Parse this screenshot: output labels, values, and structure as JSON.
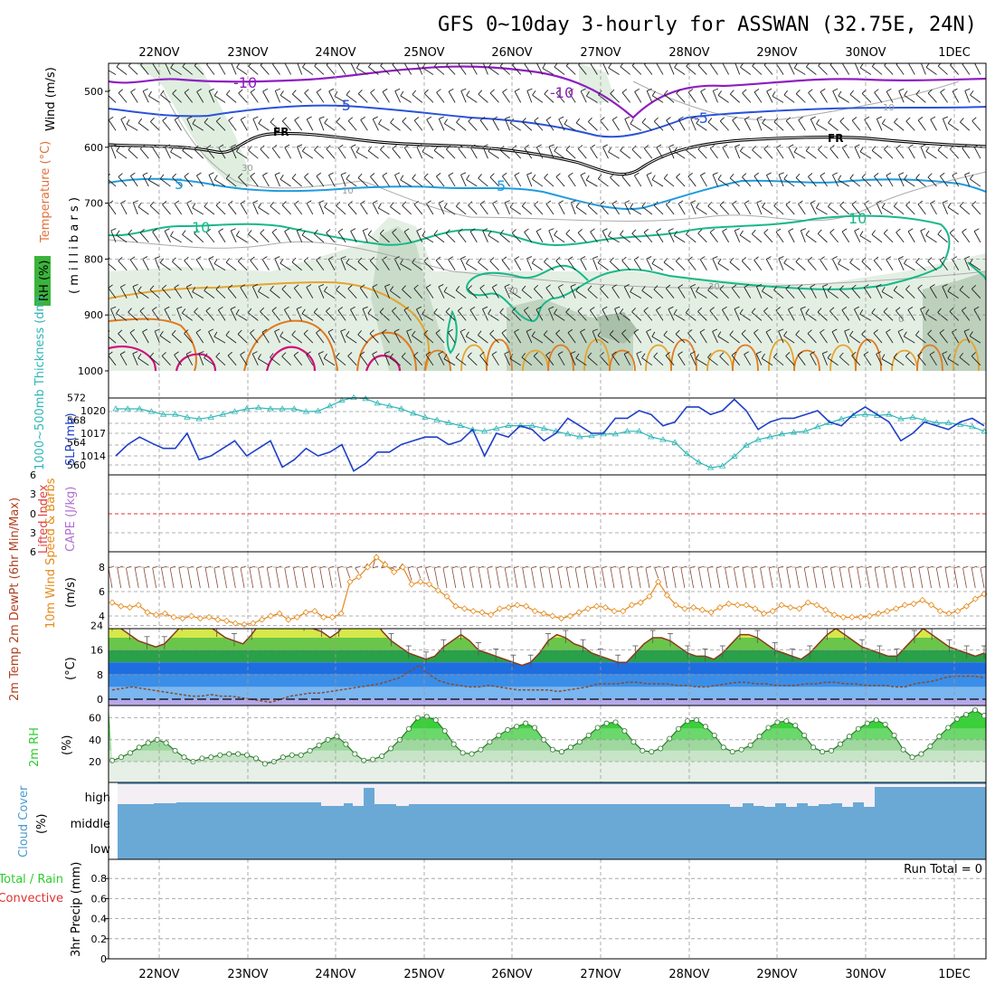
{
  "title": "GFS 0~10day 3-hourly for ASSWAN (32.75E, 24N)",
  "dates": [
    "22NOV",
    "23NOV",
    "24NOV",
    "25NOV",
    "26NOV",
    "27NOV",
    "28NOV",
    "29NOV",
    "30NOV",
    "1DEC"
  ],
  "colors": {
    "temp_purple": "#8e1ec0",
    "temp_blue": "#2a52d8",
    "temp_light_blue": "#1e9be0",
    "temp_green": "#17b889",
    "temp_orange": "#e5a42c",
    "temp_darkorange": "#e07a20",
    "temp_magenta": "#d0107a",
    "slp": "#1f3fc7",
    "thickness": "#2fb6b6",
    "wind10": "#e58a1c",
    "rh": "#2ecc2e",
    "cloud": "#6aa9d6",
    "zero_line": "#e03030"
  },
  "panels": {
    "upper_air": {
      "axis_title": "( m i l l i b a r s )",
      "label_wind": "Wind (m/s)",
      "label_temp": "Temperature (°C)",
      "label_rh": "RH (%)",
      "contour_labels": [
        "-10",
        "-10",
        "-5",
        "-5",
        "FR",
        "FR",
        "5",
        "5",
        "10",
        "10",
        "30",
        "30",
        "10",
        "10",
        "30",
        "0"
      ],
      "levels": [
        500,
        600,
        700,
        800,
        900,
        1000
      ]
    },
    "slp_thickness": {
      "left_label": "1000~500mb Thickness (dm)",
      "right_label": "SLP (mb)",
      "thickness_ticks": [
        "572",
        "568",
        "564",
        "560"
      ],
      "slp_ticks": [
        "1020",
        "1017",
        "1014"
      ]
    },
    "lifted": {
      "label_li": "Lifted Index",
      "label_cape": "CAPE (J/kg)",
      "ticks": [
        "6",
        "3",
        "0",
        "3",
        "6"
      ]
    },
    "wind10": {
      "label": "10m Wind Speed & Barbs",
      "unit": "(m/s)",
      "ticks": [
        "8",
        "6",
        "4"
      ]
    },
    "temp2m": {
      "label": "2m Temp 2m DewPt (6hr Min/Max)",
      "unit": "(°C)",
      "ticks": [
        "24",
        "16",
        "8",
        "0"
      ]
    },
    "rh2m": {
      "label": "2m RH",
      "unit": "(%)",
      "ticks": [
        "60",
        "40",
        "20"
      ]
    },
    "cloud": {
      "label": "Cloud Cover",
      "unit": "(%)",
      "levels": [
        "high",
        "middle",
        "low"
      ]
    },
    "precip": {
      "label_total": "Total / Rain",
      "label_conv": "Convective",
      "label_axis": "3hr Precip (mm)",
      "run_total": "Run Total = 0",
      "ticks": [
        "0.8",
        "0.6",
        "0.4",
        "0.2",
        "0"
      ]
    }
  },
  "chart_data": [
    {
      "type": "line",
      "title": "",
      "ylabel": "SLP (mb)",
      "series": [
        {
          "name": "SLP (mb)",
          "values": [
            1014,
            1015.5,
            1016.5,
            1015.7,
            1015,
            1015,
            1017,
            1013.5,
            1014,
            1015,
            1016,
            1014,
            1015,
            1016,
            1012.5,
            1013.5,
            1015,
            1014,
            1014.5,
            1015.5,
            1012,
            1013,
            1014.5,
            1014.5,
            1015.5,
            1016,
            1016.5,
            1016.5,
            1015.5,
            1016,
            1017.5,
            1014,
            1017,
            1016.5,
            1018,
            1017.5,
            1016,
            1017,
            1019,
            1018,
            1017,
            1017,
            1019,
            1019,
            1020,
            1019.5,
            1018,
            1018.5,
            1020.5,
            1020.5,
            1019.5,
            1020,
            1021.5,
            1020,
            1017.5,
            1018.5,
            1019,
            1019,
            1019.5,
            1020,
            1018.5,
            1018,
            1019.5,
            1020.5,
            1019.5,
            1018.5,
            1016,
            1017,
            1018.5,
            1018,
            1017.5,
            1018.5,
            1019,
            1018
          ]
        }
      ],
      "ylim": [
        1012,
        1021.5
      ]
    },
    {
      "type": "line",
      "title": "",
      "ylabel": "1000~500mb Thickness (dm)",
      "series": [
        {
          "name": "1000~500mb Thickness (dm)",
          "values": [
            570,
            570,
            570,
            569.5,
            569,
            569,
            568.5,
            568.2,
            568.5,
            569,
            569.5,
            570,
            570.2,
            570,
            570,
            570,
            569.5,
            569.6,
            570.5,
            571.5,
            572,
            571.8,
            571,
            570.5,
            570,
            569.2,
            568.5,
            568,
            567.5,
            567,
            566.3,
            566,
            566.5,
            567,
            567,
            567,
            566.5,
            566,
            565.5,
            565,
            565.2,
            565.5,
            565.5,
            566,
            566,
            565,
            564.5,
            564,
            562,
            560.5,
            559.5,
            559.8,
            561.5,
            563.5,
            564.5,
            565,
            565.5,
            565.8,
            566,
            566.8,
            567.5,
            568.2,
            568.8,
            569,
            568.8,
            569,
            568.2,
            568.5,
            568,
            567.5,
            567.5,
            567.2,
            566.8,
            566
          ]
        }
      ],
      "ylim": [
        558,
        573
      ]
    },
    {
      "type": "line",
      "title": "",
      "ylabel": "(m/s)",
      "series": [
        {
          "name": "10m Wind Speed",
          "values": [
            5.1,
            4.8,
            4.7,
            4.9,
            4.3,
            4.1,
            4.2,
            3.9,
            3.8,
            4.0,
            3.8,
            3.9,
            3.7,
            3.6,
            3.4,
            3.3,
            3.4,
            3.7,
            4.0,
            4.2,
            3.7,
            3.9,
            4.3,
            4.4,
            3.9,
            3.9,
            4.2,
            6.8,
            7.2,
            8.0,
            8.8,
            8.2,
            7.6,
            8.0,
            6.6,
            6.8,
            6.6,
            6.1,
            5.6,
            4.8,
            4.6,
            4.4,
            4.3,
            4.1,
            4.6,
            4.7,
            4.9,
            4.8,
            4.4,
            4.2,
            4.0,
            3.8,
            4.0,
            4.3,
            4.6,
            4.8,
            4.7,
            4.4,
            4.4,
            4.9,
            5.1,
            5.6,
            6.8,
            5.7,
            4.9,
            4.6,
            4.7,
            4.5,
            4.3,
            4.7,
            5.0,
            4.9,
            4.9,
            4.6,
            4.2,
            4.4,
            4.9,
            4.7,
            4.6,
            5.1,
            4.9,
            4.5,
            4.1,
            3.9,
            3.9,
            3.9,
            4.0,
            4.2,
            4.4,
            4.6,
            4.9,
            5.0,
            5.3,
            4.9,
            4.4,
            4.2,
            4.4,
            4.8,
            5.4,
            5.8
          ]
        }
      ],
      "ylim": [
        3,
        9
      ]
    },
    {
      "type": "area",
      "title": "",
      "ylabel": "(°C)",
      "series": [
        {
          "name": "2m Temp",
          "values": [
            24,
            23,
            21,
            19,
            18,
            17,
            18,
            21,
            24,
            27,
            26,
            24,
            22,
            20,
            19,
            18,
            21,
            25,
            28,
            29,
            27,
            25,
            24,
            23,
            22,
            20,
            22,
            26,
            28,
            29,
            26,
            22,
            19,
            17,
            15,
            14,
            13,
            14,
            17,
            19,
            21,
            19,
            16,
            15,
            14,
            13,
            12,
            11,
            12,
            15,
            19,
            21,
            20,
            18,
            17,
            15,
            14,
            13,
            12,
            12,
            15,
            18,
            20,
            20,
            19,
            17,
            15,
            14,
            14,
            13,
            15,
            18,
            21,
            21,
            20,
            18,
            16,
            15,
            14,
            13,
            15,
            18,
            21,
            23,
            21,
            19,
            17,
            16,
            15,
            14,
            14,
            17,
            20,
            23,
            21,
            19,
            17,
            16,
            15,
            14,
            15
          ]
        },
        {
          "name": "2m DewPt",
          "values": [
            3,
            3.5,
            4,
            3.5,
            3,
            2.5,
            2,
            1.5,
            1,
            1,
            1.5,
            1,
            1,
            0.5,
            0,
            -0.5,
            -1,
            0,
            1,
            1.5,
            2,
            2,
            2.5,
            3,
            3.5,
            4,
            4.5,
            5,
            6,
            7,
            9,
            11,
            8,
            6,
            5,
            4.5,
            4,
            4,
            4.5,
            4,
            3.5,
            3,
            3,
            3,
            3,
            2.5,
            3,
            3.5,
            4,
            5,
            5,
            5,
            5.5,
            5.5,
            5,
            5,
            5,
            4.5,
            4.5,
            4,
            4,
            4.5,
            5,
            5.5,
            5.5,
            5,
            5,
            4.5,
            4.5,
            4.5,
            5,
            5,
            5.5,
            5.5,
            5,
            5,
            4.5,
            4.5,
            4.5,
            4,
            4,
            5,
            5.5,
            6,
            7,
            7.5,
            7.5,
            7.5,
            7
          ]
        }
      ],
      "ylim": [
        -2,
        30
      ]
    },
    {
      "type": "area",
      "title": "",
      "ylabel": "(%)",
      "series": [
        {
          "name": "2m RH",
          "values": [
            21,
            24,
            28,
            33,
            37,
            40,
            37,
            30,
            24,
            20,
            23,
            24,
            26,
            27,
            27,
            26,
            23,
            18,
            20,
            24,
            26,
            26,
            30,
            35,
            40,
            43,
            36,
            27,
            21,
            22,
            25,
            32,
            40,
            50,
            60,
            61,
            58,
            48,
            36,
            28,
            27,
            31,
            38,
            44,
            49,
            52,
            55,
            51,
            40,
            31,
            29,
            33,
            38,
            44,
            51,
            55,
            56,
            48,
            38,
            30,
            29,
            32,
            41,
            50,
            57,
            58,
            52,
            44,
            33,
            29,
            31,
            35,
            43,
            51,
            56,
            57,
            53,
            44,
            33,
            29,
            30,
            36,
            43,
            50,
            55,
            58,
            54,
            44,
            31,
            24,
            27,
            34,
            43,
            51,
            59,
            63,
            67,
            62
          ]
        }
      ],
      "ylim": [
        10,
        68
      ]
    },
    {
      "type": "bar",
      "title": "",
      "ylabel": "3hr Precip (mm)",
      "categories": [
        "22NOV",
        "23NOV",
        "24NOV",
        "25NOV",
        "26NOV",
        "27NOV",
        "28NOV",
        "29NOV",
        "30NOV",
        "1DEC"
      ],
      "values": [
        0,
        0,
        0,
        0,
        0,
        0,
        0,
        0,
        0,
        0
      ],
      "ylim": [
        0,
        0.9
      ]
    }
  ]
}
